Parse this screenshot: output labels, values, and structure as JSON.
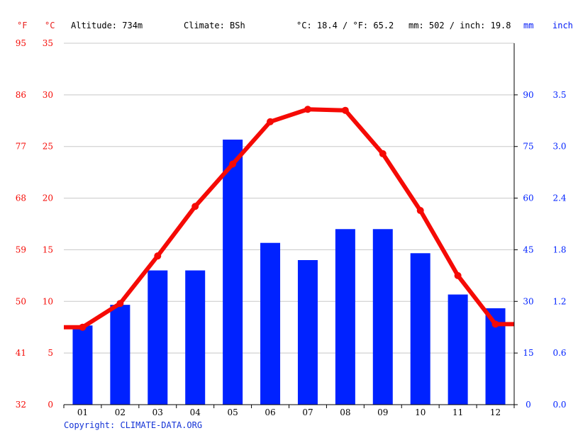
{
  "header": {
    "unit_f": "°F",
    "unit_c": "°C",
    "altitude": "Altitude: 734m",
    "climate": "Climate: BSh",
    "temp_avg": "°C: 18.4 / °F: 65.2",
    "precip_total": "mm: 502 / inch: 19.8",
    "unit_mm": "mm",
    "unit_inch": "inch"
  },
  "copyright": "Copyright: CLIMATE-DATA.ORG",
  "colors": {
    "temperature": "#f50a05",
    "precipitation": "#0022ff",
    "grid": "#c8c8c8"
  },
  "chart_data": {
    "type": "bar",
    "categories": [
      "01",
      "02",
      "03",
      "04",
      "05",
      "06",
      "07",
      "08",
      "09",
      "10",
      "11",
      "12"
    ],
    "series": [
      {
        "type": "bar",
        "axis": "right",
        "unit": "mm",
        "values": [
          23,
          29,
          39,
          39,
          77,
          47,
          42,
          51,
          51,
          44,
          32,
          28
        ]
      },
      {
        "type": "line",
        "axis": "left",
        "unit": "°C",
        "values": [
          7.5,
          9.8,
          14.4,
          19.2,
          23.3,
          27.4,
          28.6,
          28.5,
          24.3,
          18.8,
          12.5,
          7.8
        ]
      }
    ],
    "y_left_c": {
      "ticks": [
        0,
        5,
        10,
        15,
        20,
        25,
        30,
        35
      ],
      "ylim": [
        0,
        35
      ]
    },
    "y_left_f": {
      "ticks": [
        32,
        41,
        50,
        59,
        68,
        77,
        86,
        95
      ]
    },
    "y_right_mm": {
      "ticks": [
        0,
        15,
        30,
        45,
        60,
        75,
        90
      ],
      "ylim": [
        0,
        105
      ]
    },
    "y_right_inch": {
      "ticks": [
        "0.0",
        "0.6",
        "1.2",
        "1.8",
        "2.4",
        "3.0",
        "3.5"
      ]
    },
    "grid": true
  }
}
